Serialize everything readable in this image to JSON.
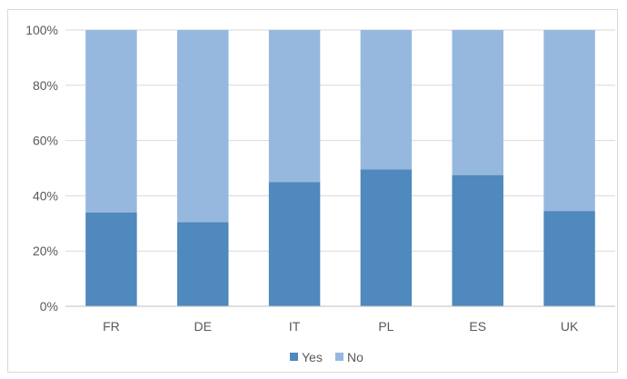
{
  "chart_data": {
    "type": "bar",
    "stacked": true,
    "percent_stacked": true,
    "categories": [
      "FR",
      "DE",
      "IT",
      "PL",
      "ES",
      "UK"
    ],
    "series": [
      {
        "name": "Yes",
        "color": "#4f89bd",
        "values": [
          34,
          30.5,
          45,
          49.5,
          47.5,
          34.5
        ]
      },
      {
        "name": "No",
        "color": "#96b8de",
        "values": [
          66,
          69.5,
          55,
          50.5,
          52.5,
          65.5
        ]
      }
    ],
    "title": "",
    "xlabel": "",
    "ylabel": "",
    "ylim": [
      0,
      100
    ],
    "yticks": [
      "0%",
      "20%",
      "40%",
      "60%",
      "80%",
      "100%"
    ],
    "grid": true,
    "legend_position": "bottom"
  }
}
